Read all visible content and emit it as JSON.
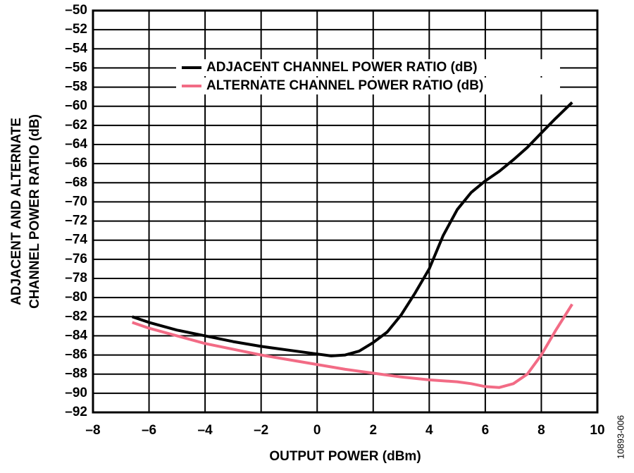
{
  "chart_data": {
    "type": "line",
    "xlabel": "OUTPUT POWER (dBm)",
    "ylabel": [
      "ADJACENT AND ALTERNATE",
      "CHANNEL POWER  RATIO (dB)"
    ],
    "note": "10893-006",
    "xlim": [
      -8,
      10
    ],
    "xticks": [
      {
        "value": -8,
        "label": "–8"
      },
      {
        "value": -6,
        "label": "–6"
      },
      {
        "value": -4,
        "label": "–4"
      },
      {
        "value": -2,
        "label": "–2"
      },
      0,
      2,
      4,
      6,
      8,
      10
    ],
    "ylim": [
      -92,
      -50
    ],
    "yticks": [
      {
        "value": -50,
        "label": "–50"
      },
      {
        "value": -52,
        "label": "–52"
      },
      {
        "value": -54,
        "label": "–54"
      },
      {
        "value": -56,
        "label": "–56"
      },
      {
        "value": -58,
        "label": "–58"
      },
      {
        "value": -60,
        "label": "–60"
      },
      {
        "value": -62,
        "label": "–62"
      },
      {
        "value": -64,
        "label": "–64"
      },
      {
        "value": -66,
        "label": "–66"
      },
      {
        "value": -68,
        "label": "–68"
      },
      {
        "value": -70,
        "label": "–70"
      },
      {
        "value": -72,
        "label": "–72"
      },
      {
        "value": -74,
        "label": "–74"
      },
      {
        "value": -76,
        "label": "–76"
      },
      {
        "value": -78,
        "label": "–78"
      },
      {
        "value": -80,
        "label": "–80"
      },
      {
        "value": -82,
        "label": "–82"
      },
      {
        "value": -84,
        "label": "–84"
      },
      {
        "value": -86,
        "label": "–86"
      },
      {
        "value": -88,
        "label": "–88"
      },
      {
        "value": -90,
        "label": "–90"
      },
      {
        "value": -92,
        "label": "–92"
      }
    ],
    "grid": true,
    "series": [
      {
        "name": "ADJACENT CHANNEL POWER RATIO (dB)",
        "color": "#000000",
        "x": [
          -6.6,
          -6,
          -5,
          -4,
          -3,
          -2,
          -1,
          0,
          0.5,
          1,
          1.5,
          2,
          2.5,
          3,
          3.5,
          4,
          4.5,
          5,
          5.5,
          6,
          6.5,
          7,
          7.5,
          8,
          8.5,
          9.1
        ],
        "values": [
          -82,
          -82.6,
          -83.4,
          -84,
          -84.6,
          -85.1,
          -85.5,
          -85.9,
          -86.1,
          -86,
          -85.6,
          -84.7,
          -83.6,
          -81.8,
          -79.5,
          -77,
          -73.5,
          -70.8,
          -69,
          -67.8,
          -66.8,
          -65.6,
          -64.3,
          -62.8,
          -61.3,
          -59.6
        ]
      },
      {
        "name": "ALTERNATE CHANNEL POWER RATIO (dB)",
        "color": "#f26b85",
        "x": [
          -6.6,
          -6,
          -5,
          -4,
          -3,
          -2,
          -1,
          0,
          1,
          2,
          3,
          4,
          5,
          5.5,
          6,
          6.5,
          7,
          7.5,
          8,
          8.5,
          9.1
        ],
        "values": [
          -82.6,
          -83.2,
          -84,
          -84.8,
          -85.4,
          -86,
          -86.5,
          -87,
          -87.5,
          -87.9,
          -88.3,
          -88.6,
          -88.8,
          -89,
          -89.3,
          -89.4,
          -89,
          -88,
          -86,
          -83.5,
          -80.7
        ]
      }
    ]
  }
}
